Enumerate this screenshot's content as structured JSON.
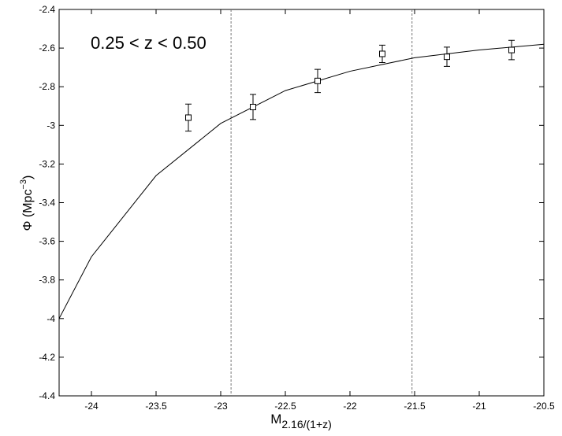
{
  "chart_data": {
    "type": "line",
    "annotation": "0.25 < z < 0.50",
    "y_label": [
      "Φ (Mpc",
      "−3",
      ")"
    ],
    "x_label": [
      "M",
      "2.16/(1+z)"
    ],
    "xlim": [
      -24.25,
      -20.5
    ],
    "ylim": [
      -4.4,
      -2.4
    ],
    "xticks": [
      -24,
      -23.5,
      -23,
      -22.5,
      -22,
      -21.5,
      -21,
      -20.5
    ],
    "yticks": [
      -4.4,
      -4.2,
      -4,
      -3.8,
      -3.6,
      -3.4,
      -3.2,
      -3,
      -2.8,
      -2.6,
      -2.4
    ],
    "vlines": [
      -22.92,
      -21.52
    ],
    "model": {
      "color": "#000000",
      "x": [
        -24.25,
        -24,
        -23.5,
        -23,
        -22.5,
        -22,
        -21.5,
        -21,
        -20.5
      ],
      "y": [
        -4.0,
        -3.68,
        -3.26,
        -2.99,
        -2.82,
        -2.72,
        -2.65,
        -2.61,
        -2.58
      ]
    },
    "points": {
      "color": "#000000",
      "x": [
        -23.25,
        -22.75,
        -22.25,
        -21.75,
        -21.25,
        -20.75
      ],
      "y": [
        -2.96,
        -2.905,
        -2.77,
        -2.63,
        -2.645,
        -2.61
      ],
      "yerr": [
        0.07,
        0.065,
        0.06,
        0.045,
        0.05,
        0.05
      ]
    }
  }
}
